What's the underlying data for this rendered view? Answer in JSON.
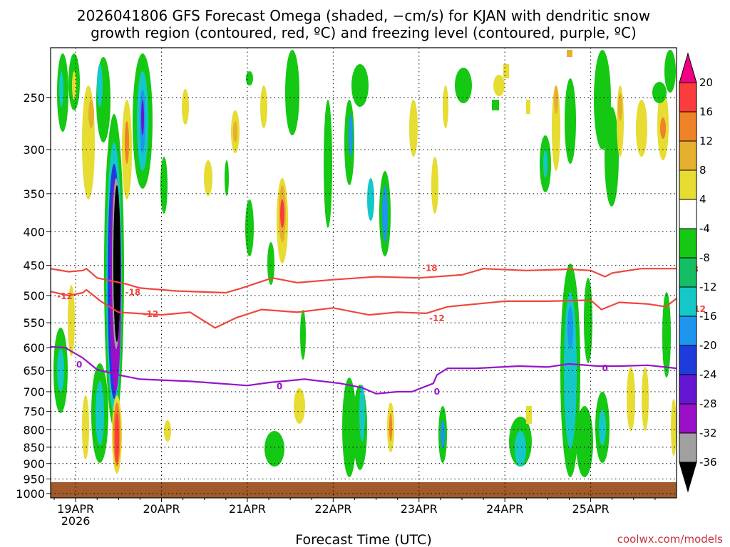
{
  "title_line1": "2026041806 GFS Forecast Omega (shaded, −cm/s) for KJAN with dendritic snow",
  "title_line2": "growth region (contoured, red, ºC) and freezing level (contoured, purple, ºC)",
  "credit": "coolwx.com/models",
  "chart_data": {
    "type": "heatmap",
    "xlabel": "Forecast Time (UTC)",
    "ylabel": "",
    "x_ticks": [
      "19APR",
      "20APR",
      "21APR",
      "22APR",
      "23APR",
      "24APR",
      "25APR"
    ],
    "x_year_label": "2026",
    "xlim_hours_from_19APR00": [
      -7,
      168
    ],
    "y_scale": "log-pressure",
    "ylim_hPa": [
      1015,
      210
    ],
    "y_ticks": [
      250,
      300,
      350,
      400,
      450,
      500,
      550,
      600,
      650,
      700,
      750,
      800,
      850,
      900,
      950,
      1000
    ],
    "grid": "dotted",
    "colorbar": {
      "levels": [
        -36,
        -32,
        -28,
        -24,
        -20,
        -16,
        -12,
        -8,
        -4,
        4,
        8,
        12,
        16,
        20
      ],
      "colors": [
        "#000000",
        "#a0a0a0",
        "#9a0fc8",
        "#6416d2",
        "#1e3cdc",
        "#1e96f0",
        "#14c8c8",
        "#14be64",
        "#14c814",
        "#ffffff",
        "#e6dc32",
        "#e6af2d",
        "#f08228",
        "#fa3c3c",
        "#f00082"
      ]
    },
    "series": [
      {
        "name": "-18",
        "color": "#f0463c",
        "label_positions": [
          [
            16,
            493
          ],
          [
            99,
            453
          ],
          [
            172,
            455
          ]
        ],
        "points": [
          [
            -7,
            455
          ],
          [
            -2,
            460
          ],
          [
            2,
            458
          ],
          [
            3,
            455
          ],
          [
            6,
            470
          ],
          [
            14,
            480
          ],
          [
            18,
            487
          ],
          [
            28,
            492
          ],
          [
            42,
            495
          ],
          [
            46,
            488
          ],
          [
            55,
            470
          ],
          [
            62,
            478
          ],
          [
            72,
            473
          ],
          [
            84,
            468
          ],
          [
            96,
            470
          ],
          [
            108,
            465
          ],
          [
            114,
            455
          ],
          [
            126,
            458
          ],
          [
            138,
            456
          ],
          [
            144,
            458
          ],
          [
            148,
            468
          ],
          [
            150,
            462
          ],
          [
            158,
            455
          ],
          [
            168,
            455
          ]
        ]
      },
      {
        "name": "-12",
        "color": "#f0463c",
        "label_positions": [
          [
            -3,
            500
          ],
          [
            21,
            532
          ],
          [
            101,
            540
          ],
          [
            174,
            523
          ]
        ],
        "points": [
          [
            -7,
            493
          ],
          [
            -2,
            500
          ],
          [
            2,
            495
          ],
          [
            3,
            490
          ],
          [
            7,
            510
          ],
          [
            12,
            530
          ],
          [
            24,
            535
          ],
          [
            32,
            530
          ],
          [
            39,
            560
          ],
          [
            45,
            540
          ],
          [
            52,
            525
          ],
          [
            62,
            530
          ],
          [
            72,
            522
          ],
          [
            82,
            535
          ],
          [
            90,
            530
          ],
          [
            98,
            532
          ],
          [
            104,
            520
          ],
          [
            112,
            515
          ],
          [
            120,
            510
          ],
          [
            132,
            510
          ],
          [
            144,
            508
          ],
          [
            147,
            525
          ],
          [
            152,
            512
          ],
          [
            160,
            515
          ],
          [
            165,
            520
          ],
          [
            168,
            505
          ]
        ]
      },
      {
        "name": "0",
        "color": "#9614c8",
        "label_positions": [
          [
            1,
            635
          ],
          [
            57,
            685
          ],
          [
            101,
            698
          ],
          [
            148,
            643
          ]
        ],
        "points": [
          [
            -7,
            598
          ],
          [
            -3,
            600
          ],
          [
            2,
            622
          ],
          [
            6,
            648
          ],
          [
            12,
            660
          ],
          [
            18,
            670
          ],
          [
            32,
            675
          ],
          [
            48,
            685
          ],
          [
            54,
            678
          ],
          [
            64,
            670
          ],
          [
            74,
            680
          ],
          [
            80,
            690
          ],
          [
            84,
            705
          ],
          [
            90,
            700
          ],
          [
            94,
            700
          ],
          [
            100,
            680
          ],
          [
            101,
            660
          ],
          [
            104,
            645
          ],
          [
            112,
            645
          ],
          [
            124,
            640
          ],
          [
            132,
            642
          ],
          [
            138,
            635
          ],
          [
            146,
            640
          ],
          [
            152,
            640
          ],
          [
            160,
            638
          ],
          [
            168,
            645
          ]
        ]
      }
    ],
    "annotations": [
      "-18",
      "-12",
      "0"
    ]
  }
}
